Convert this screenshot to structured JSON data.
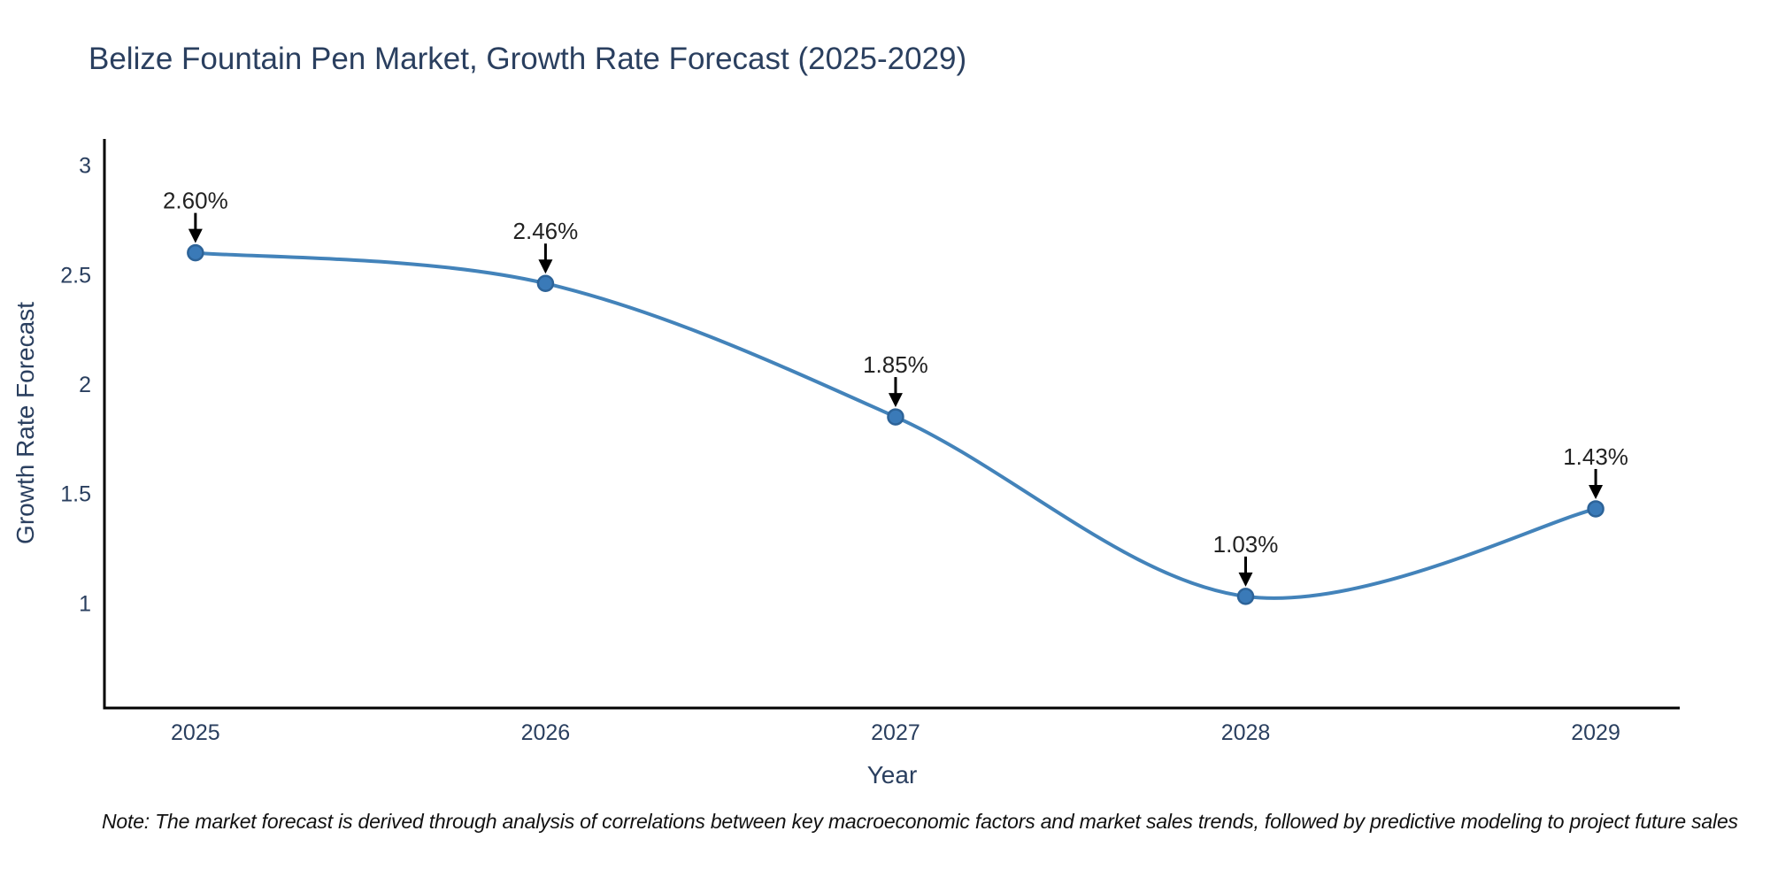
{
  "title": "Belize Fountain Pen Market, Growth Rate Forecast (2025-2029)",
  "note": "Note: The market forecast is derived through analysis of correlations between key macroeconomic factors and market sales trends, followed by predictive modeling to project future sales",
  "chart_data": {
    "type": "line",
    "title": "Belize Fountain Pen Market, Growth Rate Forecast (2025-2029)",
    "xlabel": "Year",
    "ylabel": "Growth Rate Forecast",
    "x": [
      2025,
      2026,
      2027,
      2028,
      2029
    ],
    "values": [
      2.6,
      2.46,
      1.85,
      1.03,
      1.43
    ],
    "labels": [
      "2.60%",
      "2.46%",
      "1.85%",
      "1.03%",
      "1.43%"
    ],
    "xticks": [
      "2025",
      "2026",
      "2027",
      "2028",
      "2029"
    ],
    "xtick_positions": [
      2025,
      2026,
      2027,
      2028,
      2029
    ],
    "yticks": [
      3,
      2.5,
      2,
      1.5,
      1
    ],
    "ytick_labels": [
      "3",
      "2.5",
      "2",
      "1.5",
      "1"
    ],
    "xlim": [
      2024.74,
      2029.24
    ],
    "ylim": [
      0.52,
      3.12
    ],
    "grid": false,
    "line_shape": "spline",
    "legend": "none",
    "colors": {
      "line": "#4383ba",
      "marker_fill": "#3a7ab8",
      "marker_edge": "#2d6398",
      "axis": "#000000",
      "tick_text": "#2a3f5f",
      "annotation_text": "#222222",
      "arrow": "#000000",
      "title_text": "#2a3f5f"
    }
  }
}
